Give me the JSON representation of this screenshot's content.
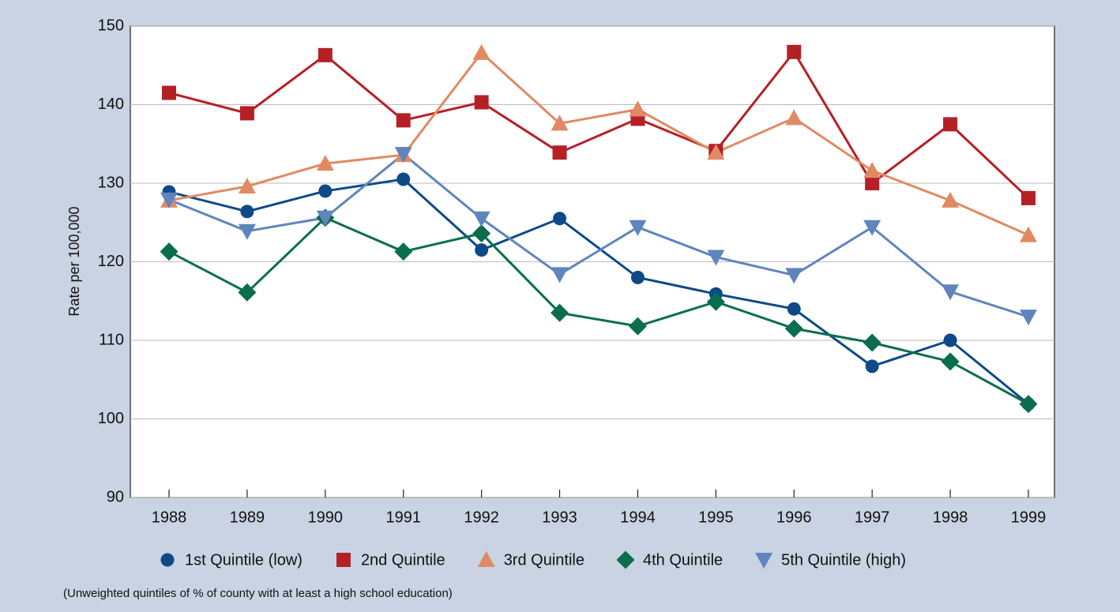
{
  "chart_data": {
    "type": "line",
    "y_label": "Rate per 100,000",
    "footnote": "(Unweighted quintiles of % of county with at least a high school education)",
    "categories": [
      "1988",
      "1989",
      "1990",
      "1991",
      "1992",
      "1993",
      "1994",
      "1995",
      "1996",
      "1997",
      "1998",
      "1999"
    ],
    "series": [
      {
        "name": "1st Quintile (low)",
        "color": "#0d4a87",
        "marker": "circle",
        "values": [
          128.9,
          126.4,
          129.0,
          130.5,
          121.5,
          125.5,
          118.0,
          115.9,
          114.0,
          106.7,
          110.0,
          101.9
        ]
      },
      {
        "name": "2nd Quintile",
        "color": "#b52025",
        "marker": "square",
        "values": [
          141.5,
          138.9,
          146.3,
          138.0,
          140.3,
          133.9,
          138.2,
          134.1,
          146.7,
          130.0,
          137.5,
          128.1
        ]
      },
      {
        "name": "3rd Quintile",
        "color": "#e08a64",
        "marker": "triangle-up",
        "values": [
          127.8,
          129.6,
          132.5,
          133.6,
          146.6,
          137.6,
          139.4,
          133.9,
          138.3,
          131.6,
          127.8,
          123.4
        ]
      },
      {
        "name": "4th Quintile",
        "color": "#0a6e4e",
        "marker": "diamond",
        "values": [
          121.3,
          116.1,
          125.6,
          121.3,
          123.6,
          113.5,
          111.8,
          114.9,
          111.5,
          109.7,
          107.3,
          101.9
        ]
      },
      {
        "name": "5th Quintile (high)",
        "color": "#5f85bd",
        "marker": "triangle-down",
        "values": [
          127.9,
          123.9,
          125.6,
          133.7,
          125.5,
          118.4,
          124.4,
          120.6,
          118.3,
          124.4,
          116.2,
          113.0
        ]
      }
    ],
    "ylim": [
      90,
      150
    ],
    "yticks": [
      90,
      100,
      110,
      120,
      130,
      140,
      150
    ],
    "grid": true
  }
}
